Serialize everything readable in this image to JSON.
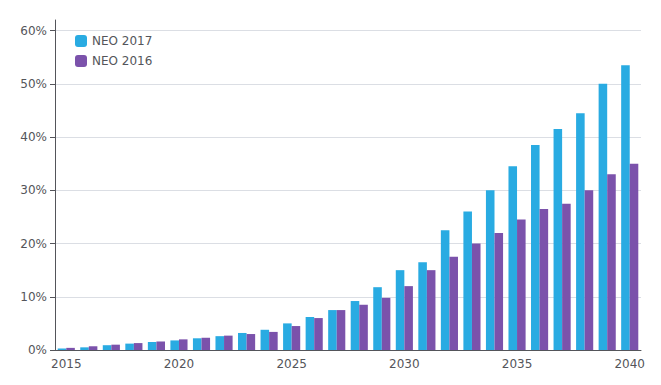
{
  "chart_data": {
    "type": "bar",
    "categories": [
      "2015",
      null,
      null,
      null,
      null,
      "2020",
      null,
      null,
      null,
      null,
      "2025",
      null,
      null,
      null,
      null,
      "2030",
      null,
      null,
      null,
      null,
      "2035",
      null,
      null,
      null,
      null,
      "2040"
    ],
    "series": [
      {
        "name": "NEO 2017",
        "color": "#29ABE2",
        "values": [
          0.003,
          0.005,
          0.009,
          0.012,
          0.015,
          0.018,
          0.022,
          0.026,
          0.032,
          0.038,
          0.05,
          0.062,
          0.075,
          0.092,
          0.118,
          0.15,
          0.165,
          0.225,
          0.26,
          0.3,
          0.345,
          0.385,
          0.415,
          0.445,
          0.5,
          0.535
        ]
      },
      {
        "name": "NEO 2016",
        "color": "#7B52AB",
        "values": [
          0.004,
          0.007,
          0.01,
          0.013,
          0.016,
          0.02,
          0.023,
          0.027,
          0.03,
          0.034,
          0.045,
          0.06,
          0.075,
          0.085,
          0.098,
          0.12,
          0.15,
          0.175,
          0.2,
          0.22,
          0.245,
          0.265,
          0.275,
          0.3,
          0.33,
          0.35
        ]
      }
    ],
    "ylim": [
      0,
      0.62
    ],
    "yticks": [
      {
        "value": 0.0,
        "label": "0%"
      },
      {
        "value": 0.1,
        "label": "10%"
      },
      {
        "value": 0.2,
        "label": "20%"
      },
      {
        "value": 0.3,
        "label": "30%"
      },
      {
        "value": 0.4,
        "label": "40%"
      },
      {
        "value": 0.5,
        "label": "50%"
      },
      {
        "value": 0.6,
        "label": "60%"
      }
    ],
    "grid": true,
    "legend": "upper left"
  }
}
